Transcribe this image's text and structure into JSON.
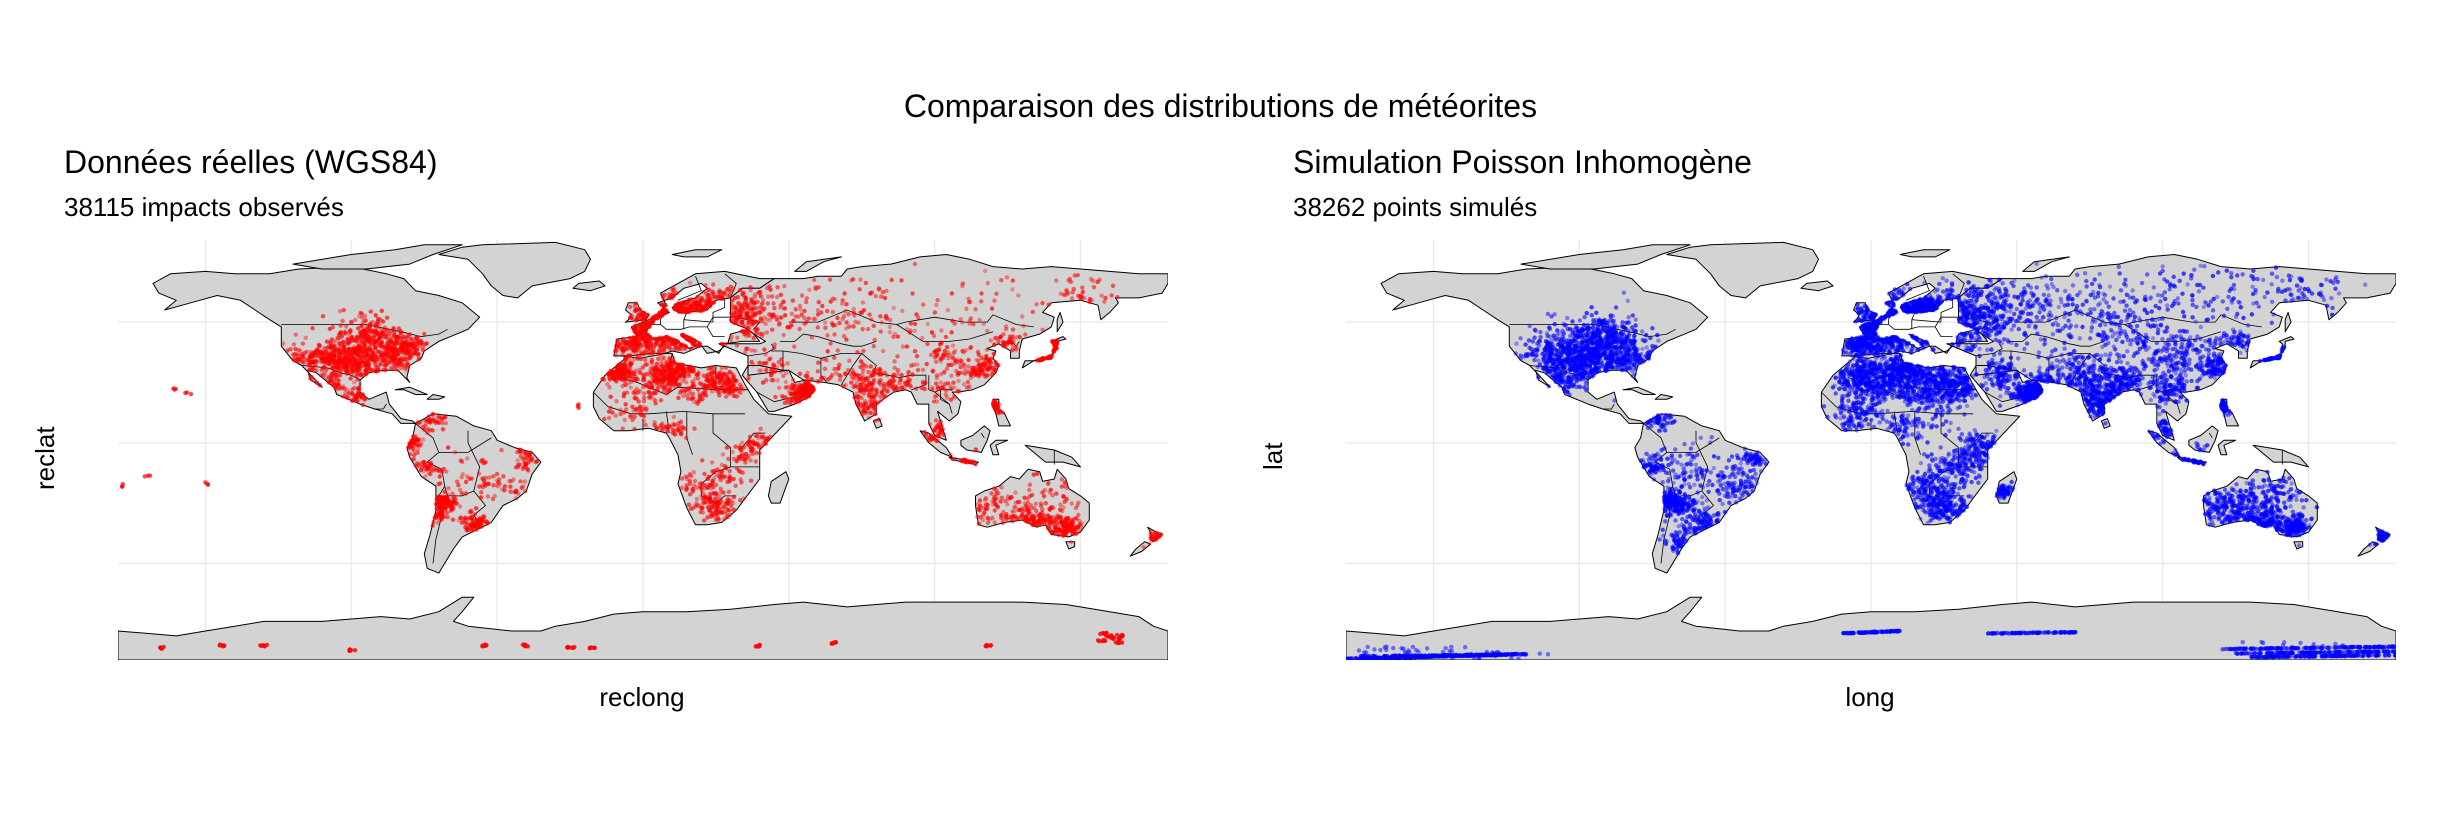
{
  "figure": {
    "title": "Comparaison des distributions de météorites"
  },
  "panels": [
    {
      "id": "observed",
      "title": "Données réelles (WGS84)",
      "subtitle": "38115 impacts observés",
      "xlabel": "reclong",
      "ylabel": "reclat",
      "point_color": "#ff0000"
    },
    {
      "id": "simulated",
      "title": "Simulation Poisson Inhomogène",
      "subtitle": "38262 points simulés",
      "xlabel": "long",
      "ylabel": "lat",
      "point_color": "#0000ff"
    }
  ],
  "colors": {
    "land_fill": "#d3d3d3",
    "border_stroke": "#000000",
    "gridline": "#ebebeb",
    "background": "#ffffff"
  },
  "map_extent": {
    "lon_range": [
      -180,
      180
    ],
    "lat_range": [
      -90,
      84
    ]
  }
}
